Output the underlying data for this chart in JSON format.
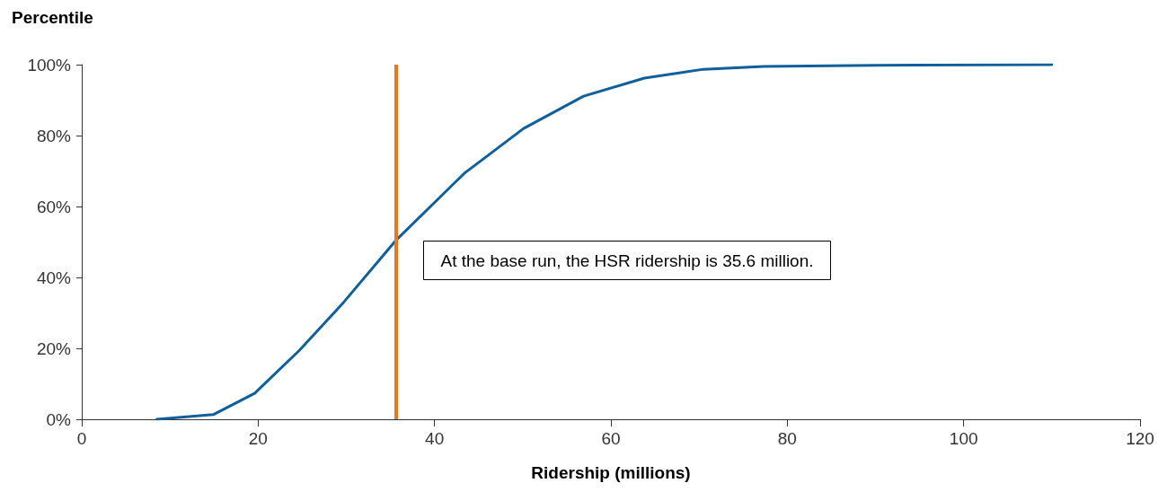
{
  "chart_data": {
    "type": "line",
    "ylabel": "Percentile",
    "xlabel": "Ridership (millions)",
    "x": [
      8.5,
      14.9,
      19.6,
      24.7,
      29.7,
      35.6,
      43.4,
      50.1,
      56.9,
      63.8,
      70.5,
      77.3,
      90,
      110
    ],
    "series": [
      {
        "color": "#0f5f9c",
        "values": [
          0,
          1.3,
          7.3,
          19.5,
          33,
          50.4,
          69.4,
          82,
          91.1,
          96.2,
          98.7,
          99.5,
          99.8,
          100
        ]
      }
    ],
    "xlim": [
      0,
      120
    ],
    "xticks": [
      0,
      20,
      40,
      60,
      80,
      100,
      120
    ],
    "ylim": [
      0,
      100
    ],
    "yticks": [
      {
        "value": 0,
        "label": "0%"
      },
      {
        "value": 20,
        "label": "20%"
      },
      {
        "value": 40,
        "label": "40%"
      },
      {
        "value": 60,
        "label": "60%"
      },
      {
        "value": 80,
        "label": "80%"
      },
      {
        "value": 100,
        "label": "100%"
      }
    ],
    "ref_lines": [
      {
        "axis": "x",
        "value": 35.6,
        "color": "#e87722"
      }
    ],
    "annotations": [
      "At the base run, the HSR ridership is 35.6 million."
    ],
    "grid": false,
    "marker": "none",
    "line_style": "solid"
  }
}
